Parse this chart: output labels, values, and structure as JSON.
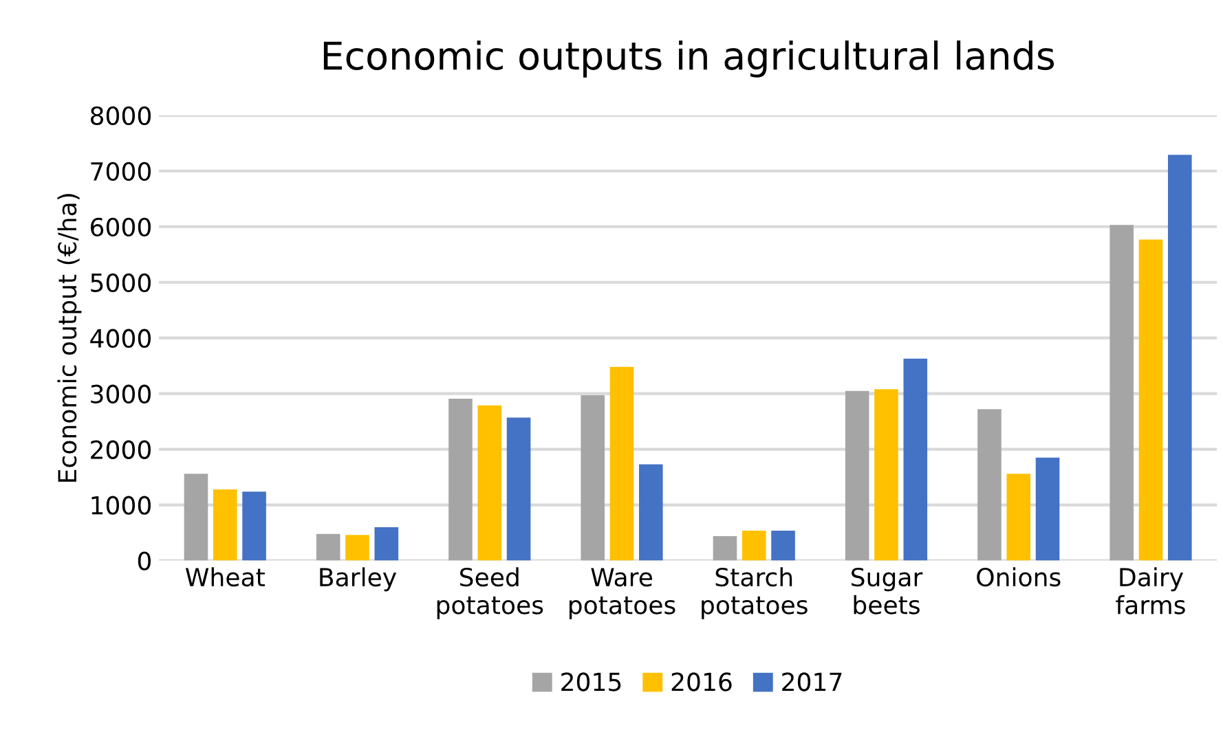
{
  "chart_data": {
    "type": "bar",
    "title": "Economic outputs in agricultural lands",
    "ylabel": "Economic output (€/ha)",
    "categories": [
      "Wheat",
      "Barley",
      "Seed\npotatoes",
      "Ware\npotatoes",
      "Starch\npotatoes",
      "Sugar\nbeets",
      "Onions",
      "Dairy\nfarms"
    ],
    "series": [
      {
        "name": "2015",
        "color": "#a5a5a5",
        "values": [
          1560,
          480,
          2910,
          2970,
          440,
          3050,
          2720,
          6030
        ]
      },
      {
        "name": "2016",
        "color": "#ffc000",
        "values": [
          1280,
          460,
          2790,
          3480,
          540,
          3080,
          1560,
          5770
        ]
      },
      {
        "name": "2017",
        "color": "#4472c4",
        "values": [
          1240,
          600,
          2570,
          1730,
          540,
          3630,
          1850,
          7290
        ]
      }
    ],
    "ylim": [
      0,
      8000
    ],
    "yticks": [
      0,
      1000,
      2000,
      3000,
      4000,
      5000,
      6000,
      7000,
      8000
    ],
    "grid": "y",
    "legend": "bottom"
  }
}
